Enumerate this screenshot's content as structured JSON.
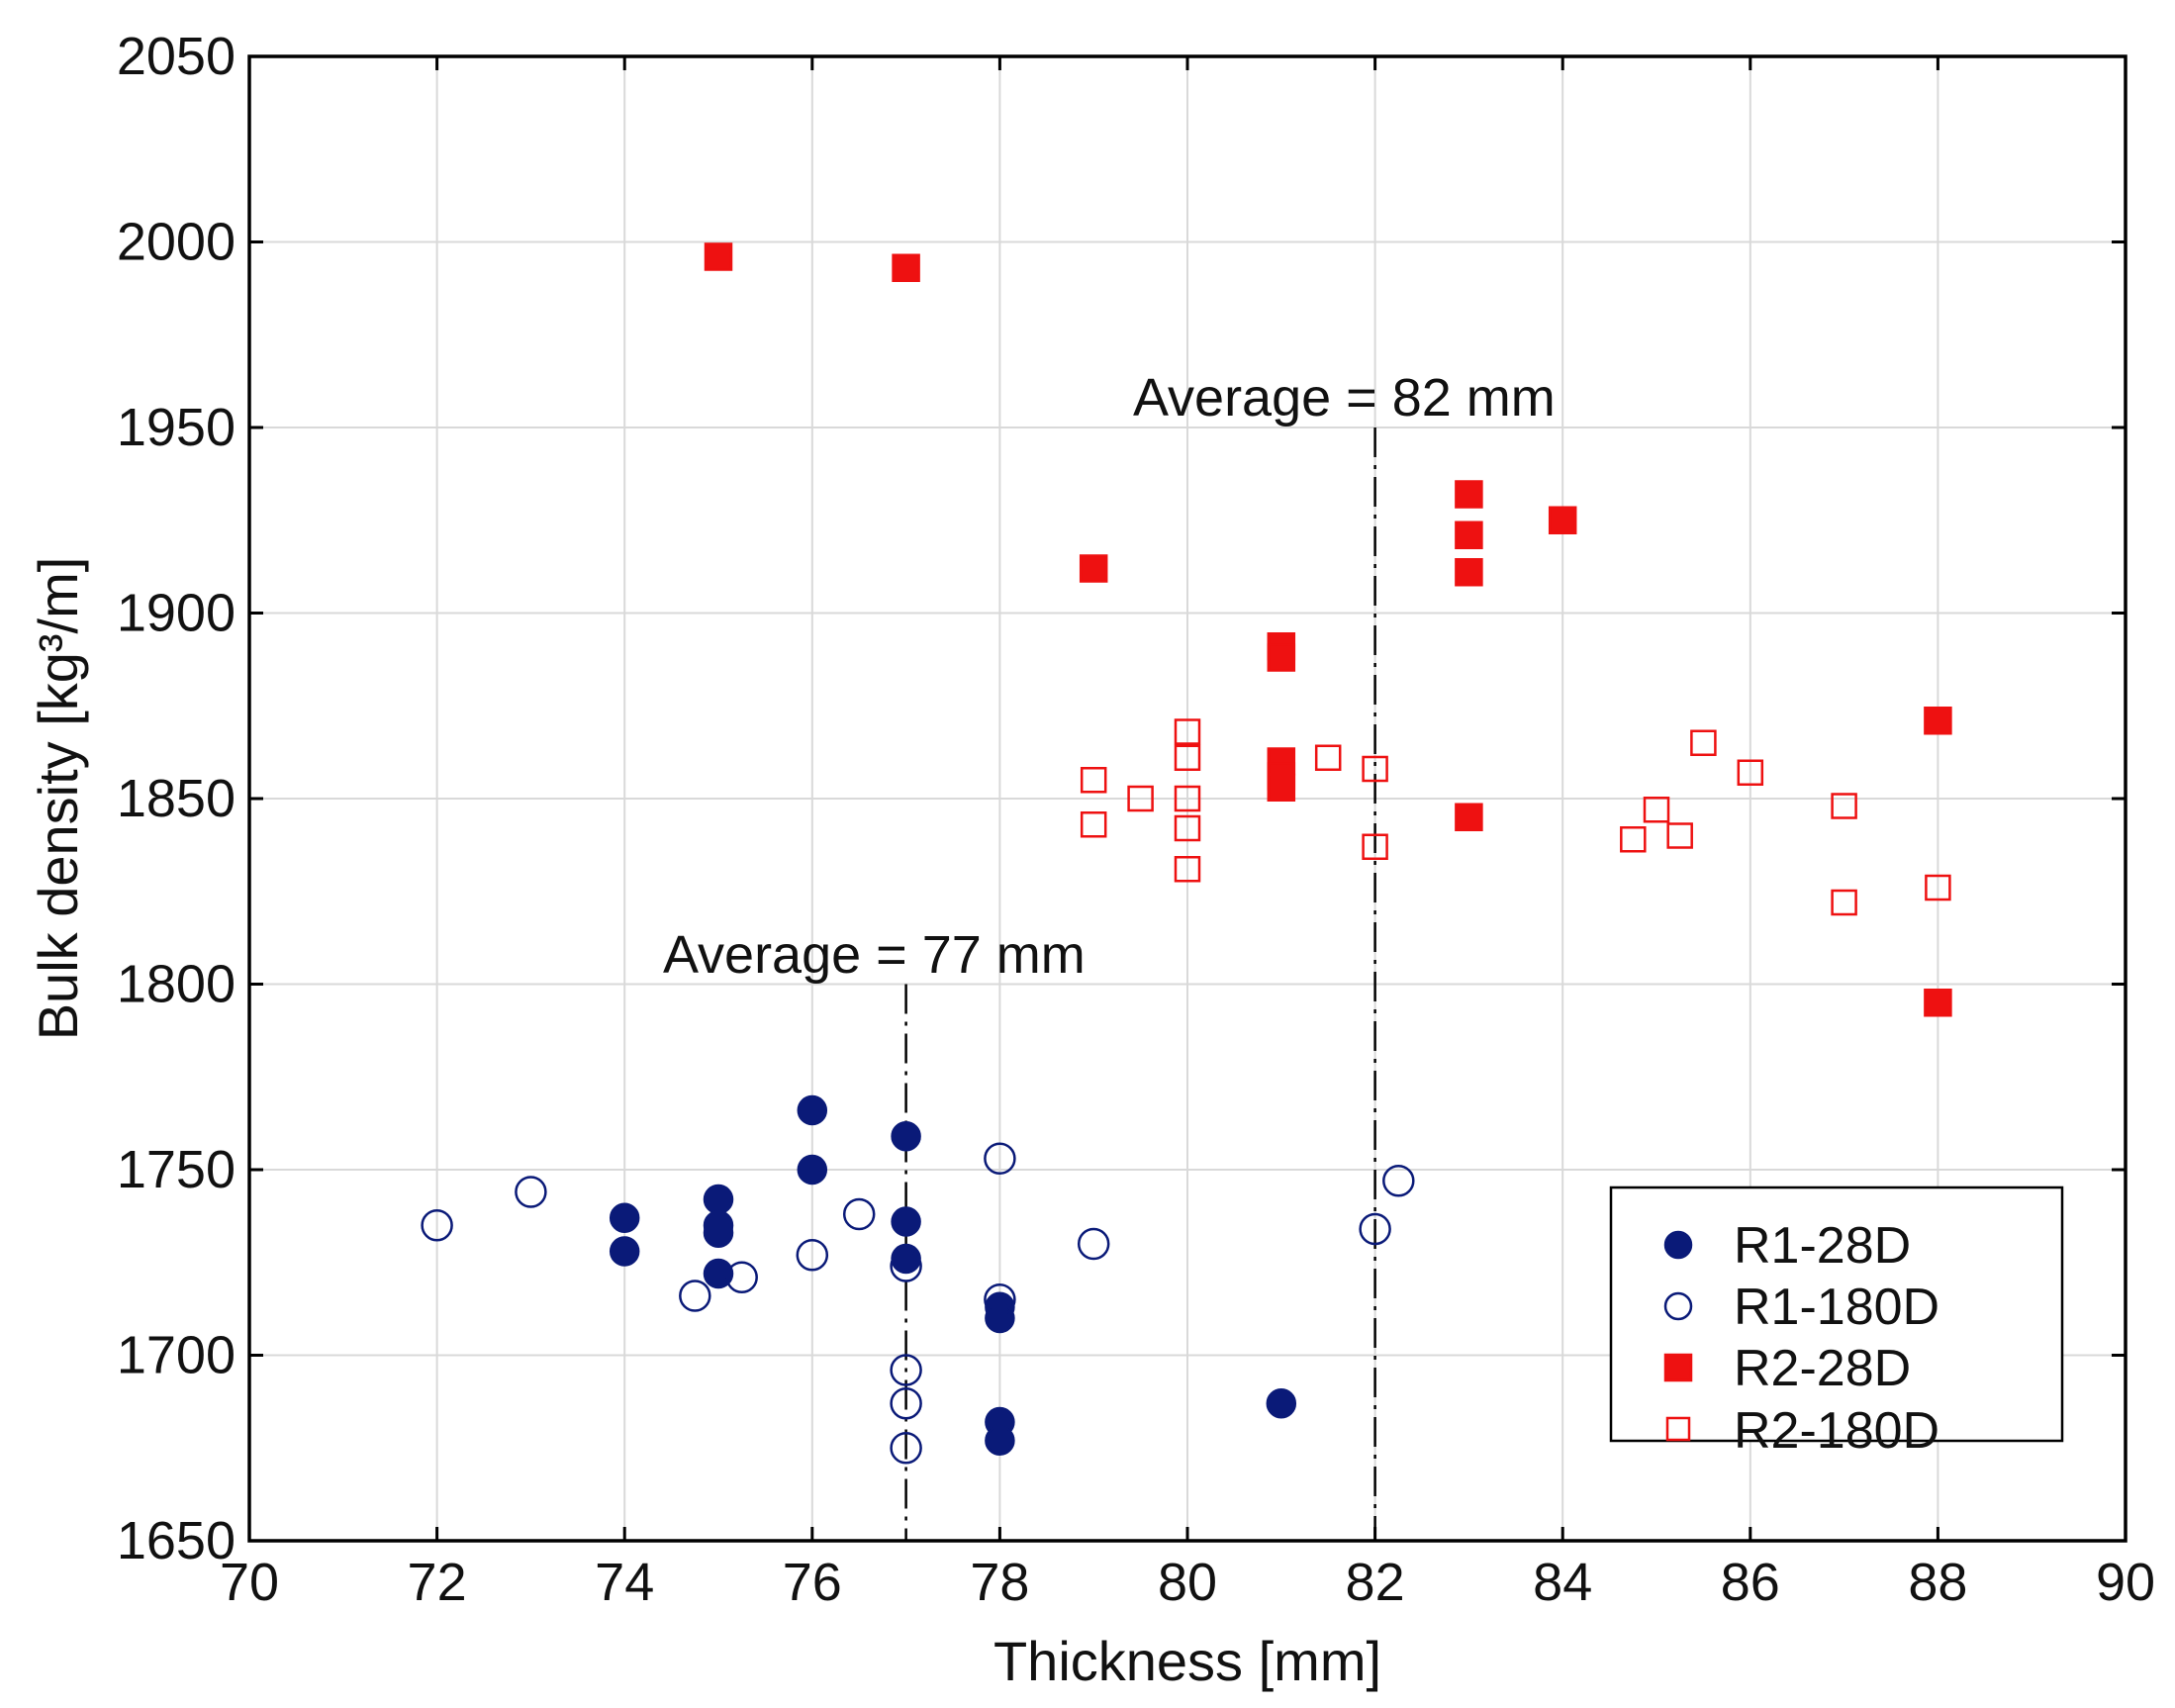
{
  "chart_data": {
    "type": "scatter",
    "title": "",
    "xlabel": "Thickness [mm]",
    "ylabel": "Bulk density [kg³/m]",
    "xlim": [
      70,
      90
    ],
    "ylim": [
      1650,
      2050
    ],
    "xticks": [
      70,
      72,
      74,
      76,
      78,
      80,
      82,
      84,
      86,
      88,
      90
    ],
    "yticks": [
      1650,
      1700,
      1750,
      1800,
      1850,
      1900,
      1950,
      2000,
      2050
    ],
    "grid": true,
    "legend_position": "bottom-right",
    "annotations": [
      {
        "text": "Average = 77 mm",
        "x": 77,
        "y_top": 1800
      },
      {
        "text": "Average = 82 mm",
        "x": 82,
        "y_top": 1950
      }
    ],
    "series": [
      {
        "name": "R1-28D",
        "marker": "circle",
        "filled": true,
        "color": "#0a1a78",
        "points": [
          [
            74,
            1737
          ],
          [
            74,
            1728
          ],
          [
            75,
            1742
          ],
          [
            75,
            1735
          ],
          [
            75,
            1733
          ],
          [
            75,
            1722
          ],
          [
            76,
            1766
          ],
          [
            76,
            1750
          ],
          [
            77,
            1759
          ],
          [
            77,
            1736
          ],
          [
            77,
            1726
          ],
          [
            78,
            1713
          ],
          [
            78,
            1710
          ],
          [
            78,
            1682
          ],
          [
            78,
            1677
          ],
          [
            81,
            1687
          ]
        ]
      },
      {
        "name": "R1-180D",
        "marker": "circle",
        "filled": false,
        "color": "#0a1a78",
        "points": [
          [
            72,
            1735
          ],
          [
            73,
            1744
          ],
          [
            74.75,
            1716
          ],
          [
            75.25,
            1721
          ],
          [
            76,
            1727
          ],
          [
            76.5,
            1738
          ],
          [
            77,
            1724
          ],
          [
            77,
            1696
          ],
          [
            77,
            1687
          ],
          [
            77,
            1675
          ],
          [
            78,
            1753
          ],
          [
            78,
            1715
          ],
          [
            79,
            1730
          ],
          [
            82,
            1734
          ],
          [
            82.25,
            1747
          ]
        ]
      },
      {
        "name": "R2-28D",
        "marker": "square",
        "filled": true,
        "color": "#ee1111",
        "points": [
          [
            75,
            1996
          ],
          [
            77,
            1993
          ],
          [
            79,
            1912
          ],
          [
            81,
            1891
          ],
          [
            81,
            1888
          ],
          [
            81,
            1860
          ],
          [
            81,
            1856
          ],
          [
            81,
            1853
          ],
          [
            83,
            1932
          ],
          [
            83,
            1921
          ],
          [
            83,
            1911
          ],
          [
            83,
            1845
          ],
          [
            84,
            1925
          ],
          [
            88,
            1871
          ],
          [
            88,
            1795
          ]
        ]
      },
      {
        "name": "R2-180D",
        "marker": "square",
        "filled": false,
        "color": "#ee1111",
        "points": [
          [
            79,
            1855
          ],
          [
            79,
            1843
          ],
          [
            79.5,
            1850
          ],
          [
            80,
            1868
          ],
          [
            80,
            1861
          ],
          [
            80,
            1850
          ],
          [
            80,
            1842
          ],
          [
            80,
            1831
          ],
          [
            81.5,
            1861
          ],
          [
            82,
            1858
          ],
          [
            82,
            1837
          ],
          [
            84.75,
            1839
          ],
          [
            85,
            1847
          ],
          [
            85.25,
            1840
          ],
          [
            85.5,
            1865
          ],
          [
            86,
            1857
          ],
          [
            87,
            1848
          ],
          [
            87,
            1822
          ],
          [
            88,
            1826
          ]
        ]
      }
    ]
  }
}
